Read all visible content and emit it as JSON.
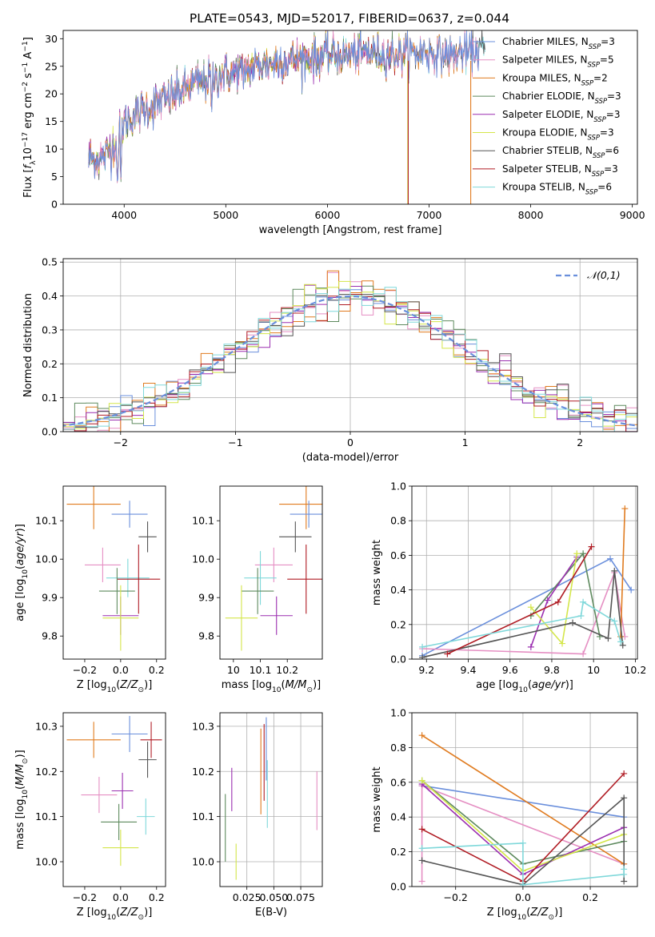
{
  "figure_title": "PLATE=0543, MJD=52017, FIBERID=0637, z=0.044",
  "colors": {
    "Chabrier MILES": "#6a8fdc",
    "Salpeter MILES": "#e58fc3",
    "Kroupa MILES": "#e07b1f",
    "Chabrier ELODIE": "#5e8a5e",
    "Salpeter ELODIE": "#9b2fb0",
    "Kroupa ELODIE": "#d4e64a",
    "Chabrier STELIB": "#555555",
    "Salpeter STELIB": "#b01c24",
    "Kroupa STELIB": "#7fd8da"
  },
  "chart_data": [
    {
      "id": "spectrum",
      "type": "line",
      "title": "PLATE=0543, MJD=52017, FIBERID=0637, z=0.044",
      "xlabel": "wavelength [Angstrom, rest frame]",
      "ylabel": "Flux [f_λ10^-17 erg cm^-2 s^-1 A^-1]",
      "xlim": [
        3400,
        9050
      ],
      "ylim": [
        0,
        31.5
      ],
      "xticks": [
        4000,
        5000,
        6000,
        7000,
        8000,
        9000
      ],
      "yticks": [
        0,
        5,
        10,
        15,
        20,
        25,
        30
      ],
      "grid": false,
      "legend_position": "right",
      "legend": [
        {
          "model": "Chabrier MILES",
          "label": "Chabrier MILES, N",
          "sub": "SSP",
          "n": "=3"
        },
        {
          "model": "Salpeter MILES",
          "label": "Salpeter MILES, N",
          "sub": "SSP",
          "n": "=5"
        },
        {
          "model": "Kroupa MILES",
          "label": "Kroupa MILES, N",
          "sub": "SSP",
          "n": "=2"
        },
        {
          "model": "Chabrier ELODIE",
          "label": "Chabrier ELODIE, N",
          "sub": "SSP",
          "n": "=3"
        },
        {
          "model": "Salpeter ELODIE",
          "label": "Salpeter ELODIE, N",
          "sub": "SSP",
          "n": "=3"
        },
        {
          "model": "Kroupa ELODIE",
          "label": "Kroupa ELODIE, N",
          "sub": "SSP",
          "n": "=3"
        },
        {
          "model": "Chabrier STELIB",
          "label": "Chabrier STELIB, N",
          "sub": "SSP",
          "n": "=6"
        },
        {
          "model": "Salpeter STELIB",
          "label": "Salpeter STELIB, N",
          "sub": "SSP",
          "n": "=3"
        },
        {
          "model": "Kroupa STELIB",
          "label": "Kroupa STELIB, N",
          "sub": "SSP",
          "n": "=6"
        }
      ],
      "continuum": {
        "wavelength": [
          3650,
          3800,
          3900,
          4000,
          4200,
          4400,
          4600,
          4800,
          5000,
          5200,
          5400,
          5600,
          5800,
          6000,
          6200,
          6400,
          6600,
          6800,
          7000,
          7200,
          7400,
          7500
        ],
        "flux": [
          8,
          8.5,
          11,
          15,
          17,
          19,
          21,
          22.5,
          23.5,
          24.5,
          25.5,
          26,
          26.5,
          27,
          27,
          27.5,
          27,
          27.5,
          27.5,
          27,
          27.5,
          28
        ]
      },
      "line_features": [
        {
          "wavelength": 3934,
          "flux": 3
        },
        {
          "wavelength": 3968,
          "flux": 5
        },
        {
          "wavelength": 4861,
          "flux": 17
        },
        {
          "wavelength": 5175,
          "flux": 21
        },
        {
          "wavelength": 5893,
          "flux": 23
        },
        {
          "wavelength": 6563,
          "flux": 24
        }
      ],
      "dropouts": [
        {
          "model": "Kroupa ELODIE",
          "wavelength": 6790
        },
        {
          "model": "Salpeter STELIB",
          "wavelength": 6795
        },
        {
          "model": "Kroupa MILES",
          "wavelength": 7410
        }
      ],
      "models_coverage": [
        {
          "model": "Kroupa STELIB",
          "range": [
            3650,
            7550
          ]
        },
        {
          "model": "Chabrier STELIB",
          "range": [
            3650,
            7550
          ]
        },
        {
          "model": "Salpeter STELIB",
          "range": [
            3650,
            6800
          ]
        },
        {
          "model": "Kroupa ELODIE",
          "range": [
            3650,
            6800
          ]
        },
        {
          "model": "Salpeter ELODIE",
          "range": [
            3650,
            6800
          ]
        },
        {
          "model": "Chabrier ELODIE",
          "range": [
            3650,
            6800
          ]
        },
        {
          "model": "Kroupa MILES",
          "range": [
            3650,
            7410
          ]
        },
        {
          "model": "Salpeter MILES",
          "range": [
            3650,
            7500
          ]
        },
        {
          "model": "Chabrier MILES",
          "range": [
            3650,
            7500
          ]
        }
      ]
    },
    {
      "id": "residuals",
      "type": "histogram",
      "xlabel": "(data-model)/error",
      "ylabel": "Normed distribution",
      "xlim": [
        -2.5,
        2.5
      ],
      "ylim": [
        0,
        0.51
      ],
      "xticks": [
        -2,
        -1,
        0,
        1,
        2
      ],
      "yticks": [
        0.0,
        0.1,
        0.2,
        0.3,
        0.4,
        0.5
      ],
      "grid": true,
      "bin_width": 0.1,
      "reference": {
        "label": "𝒩(0,1)",
        "mean": 0,
        "sigma": 1,
        "color": "#6a8fdc",
        "style": "dashed"
      },
      "legend_position": "upper right"
    },
    {
      "id": "age_vs_Z",
      "type": "errorbar",
      "xlabel": "Z [log10(Z/Z☉)]",
      "ylabel": "age  [log10(age/yr)]",
      "xlim": [
        -0.32,
        0.25
      ],
      "ylim": [
        9.74,
        10.19
      ],
      "xticks": [
        -0.2,
        0.0,
        0.2
      ],
      "xticklabels": [
        "−0.2",
        "0.0",
        "0.2"
      ],
      "yticks": [
        9.8,
        9.9,
        10.0,
        10.1
      ],
      "points": [
        {
          "model": "Kroupa MILES",
          "x": -0.15,
          "xerr": 0.15,
          "y": 10.143,
          "yerr": 0.065
        },
        {
          "model": "Chabrier MILES",
          "x": 0.05,
          "xerr": 0.1,
          "y": 10.117,
          "yerr": 0.035
        },
        {
          "model": "Chabrier STELIB",
          "x": 0.15,
          "xerr": 0.05,
          "y": 10.058,
          "yerr": 0.04
        },
        {
          "model": "Salpeter MILES",
          "x": -0.1,
          "xerr": 0.1,
          "y": 9.985,
          "yerr": 0.045
        },
        {
          "model": "Kroupa STELIB",
          "x": 0.04,
          "xerr": 0.12,
          "y": 9.951,
          "yerr": 0.05
        },
        {
          "model": "Salpeter STELIB",
          "x": 0.1,
          "xerr": 0.12,
          "y": 9.948,
          "yerr": 0.09
        },
        {
          "model": "Chabrier ELODIE",
          "x": -0.02,
          "xerr": 0.1,
          "y": 9.917,
          "yerr": 0.06
        },
        {
          "model": "Salpeter ELODIE",
          "x": 0.0,
          "xerr": 0.1,
          "y": 9.853,
          "yerr": 0.05
        },
        {
          "model": "Kroupa ELODIE",
          "x": 0.0,
          "xerr": 0.1,
          "y": 9.847,
          "yerr": 0.085
        }
      ]
    },
    {
      "id": "age_vs_mass",
      "type": "errorbar",
      "xlabel": "mass [log10(M/M☉)]",
      "xlim": [
        9.95,
        10.33
      ],
      "ylim": [
        9.74,
        10.19
      ],
      "xticks": [
        10.0,
        10.1,
        10.2
      ],
      "yticks": [
        9.8,
        9.9,
        10.0,
        10.1
      ],
      "points": [
        {
          "model": "Kroupa MILES",
          "x": 10.27,
          "xerr": 0.1,
          "y": 10.143,
          "yerr": 0.065
        },
        {
          "model": "Chabrier MILES",
          "x": 10.28,
          "xerr": 0.07,
          "y": 10.117,
          "yerr": 0.035
        },
        {
          "model": "Chabrier STELIB",
          "x": 10.23,
          "xerr": 0.06,
          "y": 10.058,
          "yerr": 0.04
        },
        {
          "model": "Salpeter MILES",
          "x": 10.15,
          "xerr": 0.07,
          "y": 9.985,
          "yerr": 0.045
        },
        {
          "model": "Kroupa STELIB",
          "x": 10.1,
          "xerr": 0.06,
          "y": 9.951,
          "yerr": 0.07
        },
        {
          "model": "Salpeter STELIB",
          "x": 10.27,
          "xerr": 0.07,
          "y": 9.948,
          "yerr": 0.09
        },
        {
          "model": "Chabrier ELODIE",
          "x": 10.09,
          "xerr": 0.06,
          "y": 9.917,
          "yerr": 0.06
        },
        {
          "model": "Salpeter ELODIE",
          "x": 10.16,
          "xerr": 0.06,
          "y": 9.853,
          "yerr": 0.05
        },
        {
          "model": "Kroupa ELODIE",
          "x": 10.03,
          "xerr": 0.06,
          "y": 9.847,
          "yerr": 0.085
        }
      ]
    },
    {
      "id": "weight_vs_age",
      "type": "line",
      "xlabel": "age  [log10(age/yr)]",
      "ylabel": "mass weight",
      "xlim": [
        9.13,
        10.21
      ],
      "ylim": [
        0,
        1.0
      ],
      "xticks": [
        9.2,
        9.4,
        9.6,
        9.8,
        10.0,
        10.2
      ],
      "yticks": [
        0.0,
        0.2,
        0.4,
        0.6,
        0.8,
        1.0
      ],
      "grid": true,
      "series": [
        {
          "model": "Chabrier MILES",
          "x": [
            9.18,
            10.08,
            10.18
          ],
          "y": [
            0.02,
            0.58,
            0.4
          ]
        },
        {
          "model": "Salpeter MILES",
          "x": [
            9.18,
            9.95,
            10.1,
            10.15
          ],
          "y": [
            0.06,
            0.03,
            0.5,
            0.13
          ]
        },
        {
          "model": "Kroupa MILES",
          "x": [
            10.13,
            10.15
          ],
          "y": [
            0.13,
            0.87
          ]
        },
        {
          "model": "Chabrier ELODIE",
          "x": [
            9.7,
            9.95,
            10.03
          ],
          "y": [
            0.25,
            0.61,
            0.13
          ]
        },
        {
          "model": "Salpeter ELODIE",
          "x": [
            9.7,
            9.78,
            9.92
          ],
          "y": [
            0.07,
            0.34,
            0.59
          ]
        },
        {
          "model": "Kroupa ELODIE",
          "x": [
            9.7,
            9.85,
            9.92
          ],
          "y": [
            0.3,
            0.09,
            0.61
          ]
        },
        {
          "model": "Chabrier STELIB",
          "x": [
            9.18,
            9.9,
            10.07,
            10.1,
            10.14
          ],
          "y": [
            0.01,
            0.21,
            0.12,
            0.51,
            0.08
          ]
        },
        {
          "model": "Salpeter STELIB",
          "x": [
            9.3,
            9.83,
            9.99
          ],
          "y": [
            0.03,
            0.33,
            0.65
          ]
        },
        {
          "model": "Kroupa STELIB",
          "x": [
            9.18,
            9.94,
            9.95,
            10.1,
            10.13
          ],
          "y": [
            0.07,
            0.25,
            0.33,
            0.22,
            0.1
          ]
        }
      ]
    },
    {
      "id": "mass_vs_Z",
      "type": "errorbar",
      "xlabel": "Z [log10(Z/Z☉)]",
      "ylabel": "mass [log10(M/M☉)]",
      "xlim": [
        -0.32,
        0.25
      ],
      "ylim": [
        9.945,
        10.33
      ],
      "xticks": [
        -0.2,
        0.0,
        0.2
      ],
      "xticklabels": [
        "−0.2",
        "0.0",
        "0.2"
      ],
      "yticks": [
        10.0,
        10.1,
        10.2,
        10.3
      ],
      "points": [
        {
          "model": "Kroupa MILES",
          "x": -0.15,
          "xerr": 0.15,
          "y": 10.27,
          "yerr": 0.0
        },
        {
          "model": "Chabrier MILES",
          "x": 0.05,
          "xerr": 0.1,
          "y": 10.283,
          "yerr": 0.0
        },
        {
          "model": "Salpeter STELIB",
          "x": 0.17,
          "xerr": 0.06,
          "y": 10.27,
          "yerr": 0.0
        },
        {
          "model": "Chabrier STELIB",
          "x": 0.15,
          "xerr": 0.05,
          "y": 10.226,
          "yerr": 0.0
        },
        {
          "model": "Salpeter ELODIE",
          "x": 0.01,
          "xerr": 0.06,
          "y": 10.157,
          "yerr": 0.0
        },
        {
          "model": "Salpeter MILES",
          "x": -0.12,
          "xerr": 0.1,
          "y": 10.148,
          "yerr": 0.0
        },
        {
          "model": "Kroupa STELIB",
          "x": 0.14,
          "xerr": 0.05,
          "y": 10.1,
          "yerr": 0.0
        },
        {
          "model": "Chabrier ELODIE",
          "x": -0.01,
          "xerr": 0.1,
          "y": 10.088,
          "yerr": 0.0
        },
        {
          "model": "Kroupa ELODIE",
          "x": 0.0,
          "xerr": 0.1,
          "y": 10.031,
          "yerr": 0.0
        }
      ]
    },
    {
      "id": "mass_vs_EBV",
      "type": "errorbar",
      "xlabel": "E(B-V)",
      "xlim": [
        0.0,
        0.095
      ],
      "ylim": [
        9.945,
        10.33
      ],
      "xticks": [
        0.025,
        0.05,
        0.075
      ],
      "xticklabels": [
        "0.025",
        "0.050",
        "0.075"
      ],
      "yticks": [
        10.0,
        10.1,
        10.2,
        10.3
      ],
      "points": [
        {
          "model": "Chabrier MILES",
          "x": 0.043,
          "xerr": 0.0,
          "y": 10.25,
          "yerr": 0.07
        },
        {
          "model": "Salpeter STELIB",
          "x": 0.041,
          "xerr": 0.0,
          "y": 10.22,
          "yerr": 0.085
        },
        {
          "model": "Kroupa MILES",
          "x": 0.038,
          "xerr": 0.0,
          "y": 10.2,
          "yerr": 0.095
        },
        {
          "model": "Kroupa STELIB",
          "x": 0.044,
          "xerr": 0.0,
          "y": 10.15,
          "yerr": 0.075
        },
        {
          "model": "Salpeter ELODIE",
          "x": 0.011,
          "xerr": 0.0,
          "y": 10.16,
          "yerr": 0.048
        },
        {
          "model": "Chabrier ELODIE",
          "x": 0.005,
          "xerr": 0.0,
          "y": 10.075,
          "yerr": 0.075
        },
        {
          "model": "Kroupa ELODIE",
          "x": 0.015,
          "xerr": 0.0,
          "y": 10.0,
          "yerr": 0.04
        },
        {
          "model": "Salpeter MILES",
          "x": 0.09,
          "xerr": 0.0,
          "y": 10.135,
          "yerr": 0.065
        }
      ]
    },
    {
      "id": "weight_vs_Z",
      "type": "line",
      "xlabel": "Z [log10(Z/Z☉)]",
      "ylabel": "mass weight",
      "xlim": [
        -0.33,
        0.34
      ],
      "ylim": [
        0,
        1.0
      ],
      "xticks": [
        -0.2,
        0.0,
        0.2
      ],
      "xticklabels": [
        "−0.2",
        "0.0",
        "0.2"
      ],
      "yticks": [
        0.0,
        0.2,
        0.4,
        0.6,
        0.8,
        1.0
      ],
      "grid": true,
      "series": [
        {
          "model": "Chabrier MILES",
          "x": [
            -0.3,
            0.3
          ],
          "y": [
            0.58,
            0.4
          ]
        },
        {
          "model": "Salpeter MILES",
          "x": [
            -0.3,
            -0.3,
            0.3
          ],
          "y": [
            0.03,
            0.58,
            0.13
          ]
        },
        {
          "model": "Kroupa MILES",
          "x": [
            -0.3,
            0.3
          ],
          "y": [
            0.87,
            0.13
          ]
        },
        {
          "model": "Chabrier ELODIE",
          "x": [
            -0.3,
            0.0,
            0.3
          ],
          "y": [
            0.61,
            0.13,
            0.26
          ]
        },
        {
          "model": "Salpeter ELODIE",
          "x": [
            -0.3,
            0.0,
            0.3
          ],
          "y": [
            0.59,
            0.07,
            0.34
          ]
        },
        {
          "model": "Kroupa ELODIE",
          "x": [
            -0.3,
            0.0,
            0.3
          ],
          "y": [
            0.61,
            0.09,
            0.3
          ]
        },
        {
          "model": "Chabrier STELIB",
          "x": [
            -0.3,
            0.0,
            0.3,
            0.3
          ],
          "y": [
            0.15,
            0.01,
            0.51,
            0.03
          ]
        },
        {
          "model": "Salpeter STELIB",
          "x": [
            -0.3,
            0.0,
            0.3
          ],
          "y": [
            0.33,
            0.03,
            0.65
          ]
        },
        {
          "model": "Kroupa STELIB",
          "x": [
            -0.3,
            0.0,
            0.0,
            0.3,
            0.3
          ],
          "y": [
            0.22,
            0.25,
            0.01,
            0.07,
            0.1
          ]
        }
      ]
    }
  ]
}
